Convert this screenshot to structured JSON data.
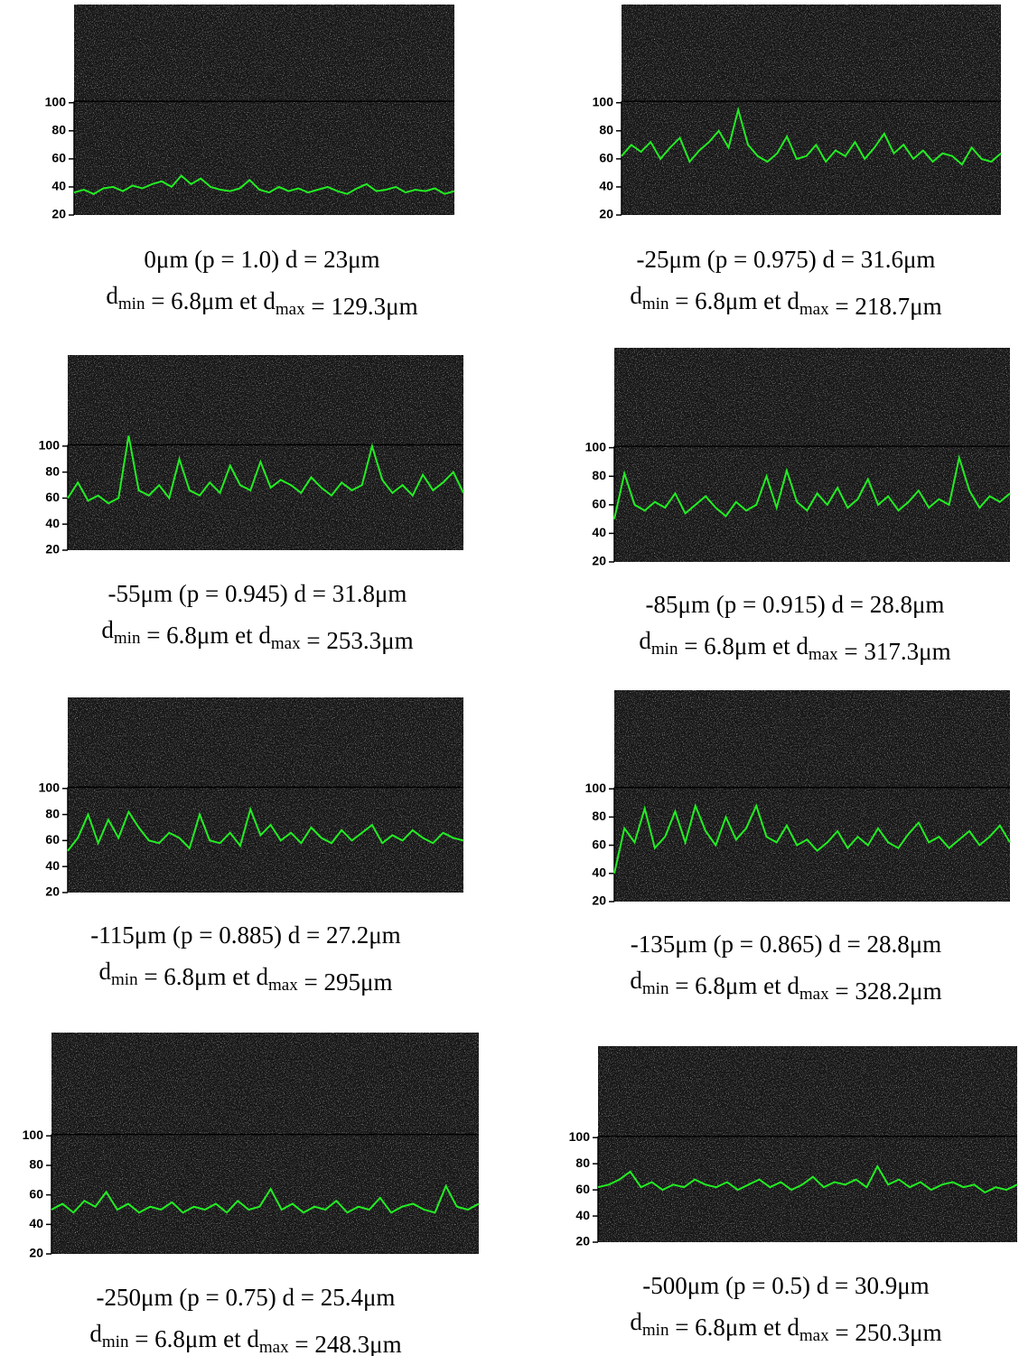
{
  "chart_data": [
    {
      "type": "line",
      "caption": [
        "0μm (p = 1.0) d = 23μm",
        "d_min = 6.8μm et d_max = 129.3μm"
      ],
      "color": "#22ee22",
      "ylim": [
        20,
        170
      ],
      "yticks": [
        20,
        40,
        60,
        80,
        100
      ],
      "values": [
        36,
        38,
        35,
        39,
        40,
        37,
        41,
        39,
        42,
        44,
        40,
        48,
        42,
        46,
        40,
        38,
        37,
        39,
        45,
        38,
        36,
        40,
        37,
        39,
        36,
        38,
        40,
        37,
        35,
        39,
        42,
        37,
        38,
        40,
        36,
        38,
        37,
        39,
        35,
        37
      ]
    },
    {
      "type": "line",
      "caption": [
        "-25μm (p = 0.975) d = 31.6μm",
        "d_min = 6.8μm et d_max = 218.7μm"
      ],
      "color": "#22ee22",
      "ylim": [
        20,
        170
      ],
      "yticks": [
        20,
        40,
        60,
        80,
        100
      ],
      "values": [
        62,
        70,
        65,
        72,
        60,
        68,
        75,
        58,
        66,
        72,
        80,
        68,
        95,
        70,
        62,
        58,
        64,
        76,
        60,
        62,
        70,
        58,
        66,
        62,
        72,
        60,
        68,
        78,
        64,
        70,
        60,
        66,
        58,
        64,
        62,
        56,
        68,
        60,
        58,
        64
      ]
    },
    {
      "type": "line",
      "caption": [
        "-55μm (p = 0.945) d = 31.8μm",
        "d_min = 6.8μm et d_max = 253.3μm"
      ],
      "color": "#22ee22",
      "ylim": [
        20,
        170
      ],
      "yticks": [
        20,
        40,
        60,
        80,
        100
      ],
      "values": [
        60,
        72,
        58,
        62,
        56,
        60,
        108,
        66,
        62,
        70,
        60,
        90,
        66,
        62,
        72,
        64,
        85,
        70,
        66,
        88,
        68,
        74,
        70,
        64,
        76,
        68,
        62,
        72,
        66,
        70,
        100,
        74,
        64,
        70,
        62,
        78,
        66,
        72,
        80,
        64
      ]
    },
    {
      "type": "line",
      "caption": [
        "-85μm (p = 0.915) d = 28.8μm",
        "d_min = 6.8μm et d_max = 317.3μm"
      ],
      "color": "#22ee22",
      "ylim": [
        20,
        170
      ],
      "yticks": [
        20,
        40,
        60,
        80,
        100
      ],
      "values": [
        50,
        82,
        60,
        56,
        62,
        58,
        68,
        54,
        60,
        66,
        58,
        52,
        62,
        56,
        60,
        80,
        58,
        84,
        62,
        56,
        68,
        60,
        72,
        58,
        64,
        78,
        60,
        66,
        56,
        62,
        70,
        58,
        64,
        60,
        93,
        70,
        58,
        66,
        62,
        68
      ]
    },
    {
      "type": "line",
      "caption": [
        "-115μm (p = 0.885) d = 27.2μm",
        "d_min = 6.8μm et d_max = 295μm"
      ],
      "color": "#22ee22",
      "ylim": [
        20,
        170
      ],
      "yticks": [
        20,
        40,
        60,
        80,
        100
      ],
      "values": [
        52,
        62,
        80,
        58,
        76,
        62,
        82,
        70,
        60,
        58,
        66,
        62,
        54,
        80,
        60,
        58,
        66,
        56,
        84,
        64,
        72,
        60,
        66,
        58,
        70,
        62,
        58,
        68,
        60,
        66,
        72,
        58,
        64,
        60,
        68,
        62,
        58,
        66,
        62,
        60
      ]
    },
    {
      "type": "line",
      "caption": [
        "-135μm (p = 0.865) d = 28.8μm",
        "d_min = 6.8μm et d_max = 328.2μm"
      ],
      "color": "#22ee22",
      "ylim": [
        20,
        170
      ],
      "yticks": [
        20,
        40,
        60,
        80,
        100
      ],
      "values": [
        40,
        72,
        62,
        86,
        58,
        66,
        84,
        62,
        88,
        70,
        60,
        80,
        64,
        72,
        88,
        66,
        62,
        74,
        60,
        64,
        56,
        62,
        70,
        58,
        66,
        60,
        72,
        62,
        58,
        68,
        76,
        62,
        66,
        58,
        64,
        70,
        60,
        66,
        74,
        62
      ]
    },
    {
      "type": "line",
      "caption": [
        "-250μm (p = 0.75) d = 25.4μm",
        "d_min = 6.8μm et d_max = 248.3μm"
      ],
      "color": "#22ee22",
      "ylim": [
        20,
        170
      ],
      "yticks": [
        20,
        40,
        60,
        80,
        100
      ],
      "values": [
        50,
        54,
        48,
        56,
        52,
        62,
        50,
        54,
        48,
        52,
        50,
        55,
        48,
        52,
        50,
        54,
        48,
        56,
        50,
        52,
        64,
        50,
        54,
        48,
        52,
        50,
        56,
        48,
        52,
        50,
        58,
        48,
        52,
        54,
        50,
        48,
        66,
        52,
        50,
        54
      ]
    },
    {
      "type": "line",
      "caption": [
        "-500μm (p = 0.5) d = 30.9μm",
        "d_min = 6.8μm et d_max = 250.3μm"
      ],
      "color": "#22ee22",
      "ylim": [
        20,
        170
      ],
      "yticks": [
        20,
        40,
        60,
        80,
        100
      ],
      "values": [
        62,
        64,
        68,
        74,
        62,
        66,
        60,
        64,
        62,
        68,
        64,
        62,
        66,
        60,
        64,
        68,
        62,
        66,
        60,
        64,
        70,
        62,
        66,
        64,
        68,
        62,
        78,
        64,
        68,
        62,
        66,
        60,
        64,
        66,
        62,
        64,
        58,
        62,
        60,
        64
      ]
    }
  ]
}
